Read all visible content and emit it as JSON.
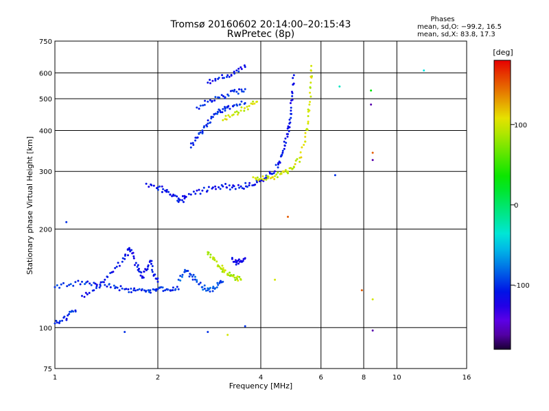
{
  "chart_data": {
    "type": "scatter",
    "title": "Tromsø 20160602 20:14:00–20:15:43",
    "subtitle": "RwPretec (8p)",
    "xlabel": "Frequency [MHz]",
    "ylabel": "Stationary phase Virtual Height [km]",
    "x_scale": "log",
    "y_scale": "log",
    "xlim": [
      1,
      16
    ],
    "ylim": [
      75,
      750
    ],
    "x_ticks": [
      1,
      2,
      4,
      6,
      8,
      10,
      16
    ],
    "y_ticks": [
      75,
      100,
      200,
      300,
      400,
      500,
      600,
      750
    ],
    "grid": true,
    "legend_info": {
      "heading": "Phases",
      "line1": "mean, sd,O: −99.2, 16.5",
      "line2": "mean, sd,X:  83.8, 17.3"
    },
    "colorbar": {
      "unit": "[deg]",
      "min": -180,
      "max": 180,
      "ticks": [
        100,
        0,
        -100
      ],
      "colormap": "rainbow",
      "top_color": "#ff0000",
      "bottom_color": "#000000"
    },
    "traces": [
      {
        "phase": -100,
        "points": [
          [
            1.0,
            103
          ],
          [
            1.05,
            105
          ],
          [
            1.1,
            110
          ],
          [
            1.15,
            112
          ]
        ]
      },
      {
        "phase": -100,
        "points": [
          [
            1.0,
            133
          ],
          [
            1.1,
            135
          ],
          [
            1.2,
            138
          ],
          [
            1.3,
            137
          ],
          [
            1.4,
            135
          ],
          [
            1.5,
            132
          ],
          [
            1.6,
            131
          ],
          [
            1.7,
            130
          ],
          [
            1.8,
            131
          ],
          [
            1.9,
            130
          ],
          [
            2.0,
            131
          ],
          [
            2.1,
            130
          ],
          [
            2.2,
            130
          ],
          [
            2.3,
            131
          ]
        ]
      },
      {
        "phase": -110,
        "points": [
          [
            1.2,
            125
          ],
          [
            1.3,
            130
          ],
          [
            1.4,
            140
          ],
          [
            1.5,
            152
          ],
          [
            1.6,
            162
          ],
          [
            1.65,
            175
          ],
          [
            1.7,
            165
          ],
          [
            1.75,
            150
          ],
          [
            1.8,
            142
          ],
          [
            1.85,
            150
          ],
          [
            1.9,
            160
          ],
          [
            1.95,
            145
          ],
          [
            2.0,
            138
          ]
        ]
      },
      {
        "phase": -90,
        "points": [
          [
            2.3,
            140
          ],
          [
            2.4,
            150
          ],
          [
            2.5,
            145
          ],
          [
            2.6,
            138
          ],
          [
            2.7,
            133
          ],
          [
            2.8,
            130
          ],
          [
            2.9,
            132
          ],
          [
            3.0,
            135
          ],
          [
            3.1,
            138
          ]
        ]
      },
      {
        "phase": 90,
        "points": [
          [
            2.8,
            170
          ],
          [
            2.9,
            162
          ],
          [
            3.0,
            155
          ],
          [
            3.1,
            150
          ],
          [
            3.2,
            146
          ],
          [
            3.3,
            144
          ],
          [
            3.4,
            142
          ],
          [
            3.5,
            140
          ]
        ]
      },
      {
        "phase": -120,
        "points": [
          [
            3.3,
            162
          ],
          [
            3.4,
            158
          ],
          [
            3.5,
            160
          ],
          [
            3.6,
            163
          ]
        ]
      },
      {
        "phase": -110,
        "points": [
          [
            1.85,
            275
          ],
          [
            2.0,
            268
          ],
          [
            2.1,
            262
          ],
          [
            2.2,
            252
          ],
          [
            2.3,
            248
          ],
          [
            2.4,
            250
          ]
        ]
      },
      {
        "phase": -110,
        "points": [
          [
            2.3,
            242
          ],
          [
            2.5,
            255
          ],
          [
            2.7,
            262
          ],
          [
            2.9,
            268
          ],
          [
            3.1,
            270
          ],
          [
            3.3,
            268
          ],
          [
            3.5,
            270
          ],
          [
            3.7,
            272
          ],
          [
            3.9,
            278
          ],
          [
            4.1,
            285
          ],
          [
            4.3,
            295
          ],
          [
            4.5,
            315
          ],
          [
            4.6,
            335
          ],
          [
            4.7,
            360
          ],
          [
            4.8,
            390
          ],
          [
            4.85,
            420
          ],
          [
            4.9,
            460
          ],
          [
            4.95,
            520
          ],
          [
            5.0,
            590
          ]
        ]
      },
      {
        "phase": 100,
        "points": [
          [
            3.8,
            288
          ],
          [
            4.0,
            285
          ],
          [
            4.2,
            286
          ],
          [
            4.4,
            290
          ],
          [
            4.6,
            295
          ],
          [
            4.8,
            300
          ],
          [
            5.0,
            310
          ],
          [
            5.2,
            330
          ],
          [
            5.4,
            370
          ],
          [
            5.5,
            420
          ],
          [
            5.55,
            480
          ],
          [
            5.6,
            560
          ],
          [
            5.62,
            630
          ]
        ]
      },
      {
        "phase": -100,
        "points": [
          [
            2.5,
            355
          ],
          [
            2.6,
            380
          ],
          [
            2.7,
            400
          ],
          [
            2.8,
            420
          ],
          [
            2.9,
            440
          ],
          [
            3.0,
            455
          ],
          [
            3.1,
            465
          ],
          [
            3.2,
            470
          ],
          [
            3.4,
            480
          ],
          [
            3.6,
            485
          ]
        ]
      },
      {
        "phase": 100,
        "points": [
          [
            3.1,
            430
          ],
          [
            3.3,
            445
          ],
          [
            3.5,
            460
          ],
          [
            3.7,
            475
          ],
          [
            3.9,
            490
          ]
        ]
      },
      {
        "phase": -100,
        "points": [
          [
            2.6,
            470
          ],
          [
            2.8,
            490
          ],
          [
            3.0,
            505
          ],
          [
            3.2,
            515
          ],
          [
            3.4,
            525
          ],
          [
            3.6,
            535
          ]
        ]
      },
      {
        "phase": -110,
        "points": [
          [
            2.8,
            560
          ],
          [
            3.0,
            575
          ],
          [
            3.2,
            590
          ],
          [
            3.4,
            610
          ],
          [
            3.6,
            625
          ]
        ]
      }
    ],
    "isolated_points": [
      {
        "x": 1.08,
        "y": 210,
        "phase": -100
      },
      {
        "x": 1.6,
        "y": 97,
        "phase": -100
      },
      {
        "x": 2.8,
        "y": 97,
        "phase": -100
      },
      {
        "x": 3.2,
        "y": 95,
        "phase": 100
      },
      {
        "x": 3.6,
        "y": 101,
        "phase": -100
      },
      {
        "x": 4.8,
        "y": 218,
        "phase": 150
      },
      {
        "x": 4.4,
        "y": 140,
        "phase": 100
      },
      {
        "x": 6.6,
        "y": 292,
        "phase": -100
      },
      {
        "x": 6.8,
        "y": 545,
        "phase": -30
      },
      {
        "x": 7.9,
        "y": 130,
        "phase": 150
      },
      {
        "x": 8.4,
        "y": 530,
        "phase": 30
      },
      {
        "x": 8.4,
        "y": 480,
        "phase": -160
      },
      {
        "x": 8.5,
        "y": 342,
        "phase": 150
      },
      {
        "x": 8.5,
        "y": 325,
        "phase": -160
      },
      {
        "x": 8.5,
        "y": 122,
        "phase": 100
      },
      {
        "x": 8.5,
        "y": 98,
        "phase": -160
      },
      {
        "x": 12.0,
        "y": 610,
        "phase": -40
      }
    ]
  }
}
